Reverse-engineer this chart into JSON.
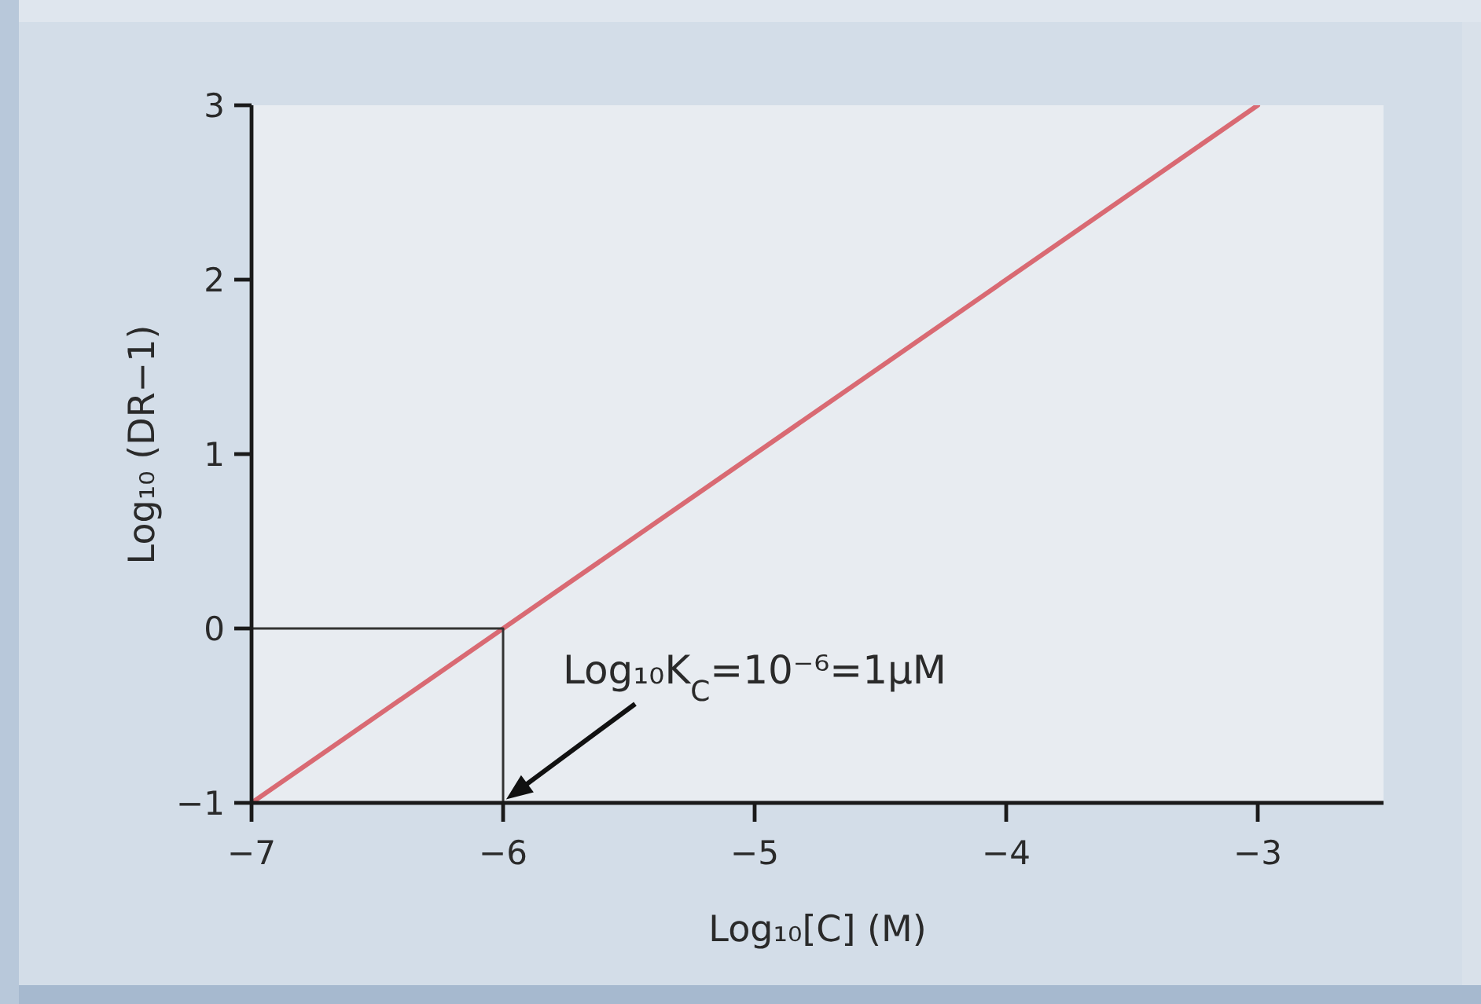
{
  "chart_data": {
    "type": "line",
    "xlabel": "Log₁₀[C] (M)",
    "ylabel": "Log₁₀ (DR−1)",
    "series": [
      {
        "color": "#d96a73",
        "x": [
          -7,
          -3
        ],
        "values": [
          -1,
          3
        ]
      },
      {
        "color": "#333333",
        "x": [
          -7,
          -6,
          -6
        ],
        "values": [
          0,
          0,
          -1
        ]
      }
    ],
    "xlim": [
      -7,
      -2.5
    ],
    "xticks": [
      -7,
      -6,
      -5,
      -4,
      -3
    ],
    "ylim": [
      -1,
      3
    ],
    "yticks": [
      -1,
      0,
      1,
      2,
      3
    ],
    "marker": "none",
    "line_style": "solid",
    "annotations": [
      {
        "text": "Log₁₀K$_{C}$=10⁻⁶=1μM",
        "x": -6,
        "y": -1
      }
    ]
  }
}
